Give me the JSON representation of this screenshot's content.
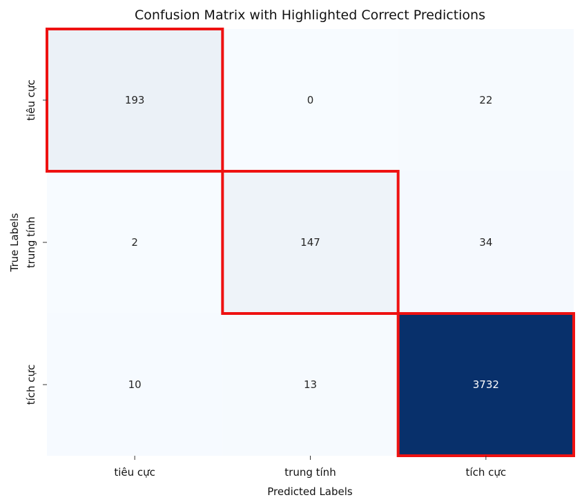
{
  "chart_data": {
    "type": "heatmap",
    "title": "Confusion Matrix with Highlighted Correct Predictions",
    "xlabel": "Predicted Labels",
    "ylabel": "True Labels",
    "x_categories": [
      "tiêu cực",
      "trung tính",
      "tích cực"
    ],
    "y_categories": [
      "tiêu cực",
      "trung tính",
      "tích cực"
    ],
    "values": [
      [
        193,
        0,
        22
      ],
      [
        2,
        147,
        34
      ],
      [
        10,
        13,
        3732
      ]
    ],
    "colormap": "Blues",
    "colormap_low": "#f7fbff",
    "colormap_high": "#08306b",
    "colorbar": false,
    "highlight_diagonal": true,
    "highlight_color": "#ee1111"
  }
}
